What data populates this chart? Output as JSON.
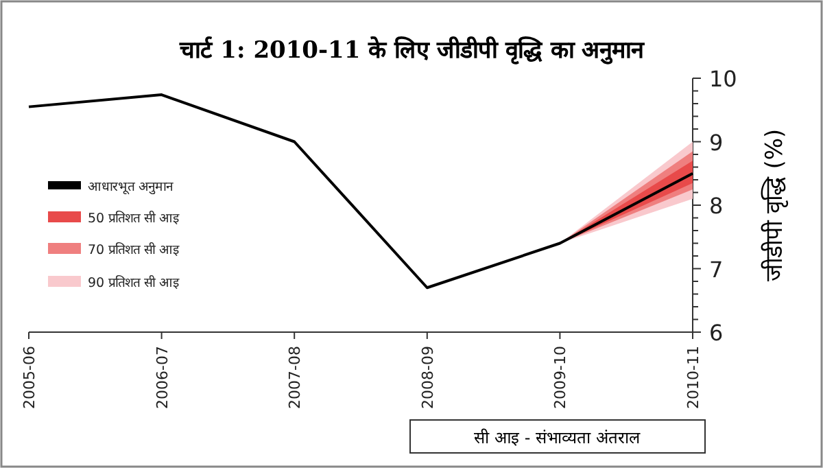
{
  "chart_data": {
    "type": "line",
    "title": "चार्ट 1: 2010-11 के लिए जीडीपी वृद्धि का अनुमान",
    "ylabel": "जीडीपी वृद्धि (%)",
    "categories": [
      "2005-06",
      "2006-07",
      "2007-08",
      "2008-09",
      "2009-10",
      "2010-11"
    ],
    "series": [
      {
        "name": "आधारभूत अनुमान",
        "color": "#000000",
        "values": [
          9.55,
          9.74,
          9.0,
          6.7,
          7.4,
          8.5
        ]
      },
      {
        "name": "50 प्रतिशत सी आइ",
        "type": "area",
        "color": "#e84a4a",
        "values": [
          null,
          null,
          null,
          null,
          null,
          null
        ],
        "lower": [
          null,
          null,
          null,
          null,
          7.4,
          8.35
        ],
        "upper": [
          null,
          null,
          null,
          null,
          7.4,
          8.7
        ]
      },
      {
        "name": "70 प्रतिशत सी आइ",
        "type": "area",
        "color": "#ef7f7f",
        "values": [
          null,
          null,
          null,
          null,
          null,
          null
        ],
        "lower": [
          null,
          null,
          null,
          null,
          7.4,
          8.25
        ],
        "upper": [
          null,
          null,
          null,
          null,
          7.4,
          8.85
        ]
      },
      {
        "name": "90 प्रतिशत सी आइ",
        "type": "area",
        "color": "#f9c9cd",
        "values": [
          null,
          null,
          null,
          null,
          null,
          null
        ],
        "lower": [
          null,
          null,
          null,
          null,
          7.4,
          8.1
        ],
        "upper": [
          null,
          null,
          null,
          null,
          7.4,
          9.0
        ]
      }
    ],
    "ylim": [
      6,
      10
    ],
    "yticks": [
      6,
      {
        "value": 6.2,
        "label": null
      },
      {
        "value": 6.4,
        "label": null
      },
      {
        "value": 6.6,
        "label": null
      },
      {
        "value": 6.8,
        "label": null
      },
      7,
      {
        "value": 7.2,
        "label": null
      },
      {
        "value": 7.4,
        "label": null
      },
      {
        "value": 7.6,
        "label": null
      },
      {
        "value": 7.8,
        "label": null
      },
      8,
      {
        "value": 8.2,
        "label": null
      },
      {
        "value": 8.4,
        "label": null
      },
      {
        "value": 8.6,
        "label": null
      },
      {
        "value": 8.8,
        "label": null
      },
      9,
      {
        "value": 9.2,
        "label": null
      },
      {
        "value": 9.4,
        "label": null
      },
      {
        "value": 9.6,
        "label": null
      },
      {
        "value": 9.8,
        "label": null
      },
      10
    ],
    "legend": "left",
    "annotations": [
      "सी आइ - संभाव्यता अंतराल"
    ]
  }
}
